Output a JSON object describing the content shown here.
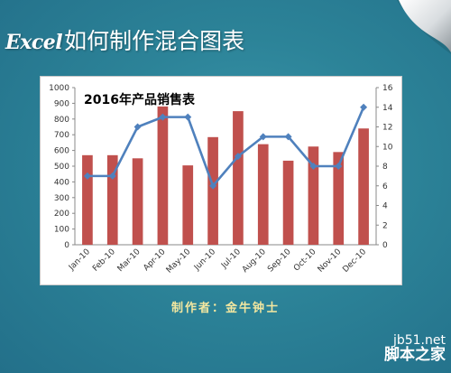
{
  "header": {
    "title_en": "Excel",
    "title_cn": "如何制作混合图表"
  },
  "author_line": "制作者：金牛钟士",
  "watermark": {
    "top": "jb51.net",
    "bottom": "脚本之家"
  },
  "colors": {
    "background": "#2b7f94",
    "bar": "#c0504d",
    "line": "#4f81bd",
    "author_text": "#f3e7a0"
  },
  "chart_data": {
    "type": "bar",
    "title": "2016年产品销售表",
    "categories": [
      "Jan-10",
      "Feb-10",
      "Mar-10",
      "Apr-10",
      "May-10",
      "Jun-10",
      "Jul-10",
      "Aug-10",
      "Sep-10",
      "Oct-10",
      "Nov-10",
      "Dec-10"
    ],
    "series": [
      {
        "type": "bar",
        "axis": "left",
        "values": [
          570,
          570,
          550,
          880,
          505,
          685,
          850,
          640,
          535,
          625,
          590,
          740
        ]
      },
      {
        "type": "line",
        "axis": "right",
        "values": [
          7,
          7,
          12,
          13,
          13,
          6,
          9,
          11,
          11,
          8,
          8,
          14
        ]
      }
    ],
    "y_left": {
      "min": 0,
      "max": 1000,
      "step": 100
    },
    "y_right": {
      "min": 0,
      "max": 16,
      "step": 2
    },
    "grid": false,
    "legend": "none"
  }
}
